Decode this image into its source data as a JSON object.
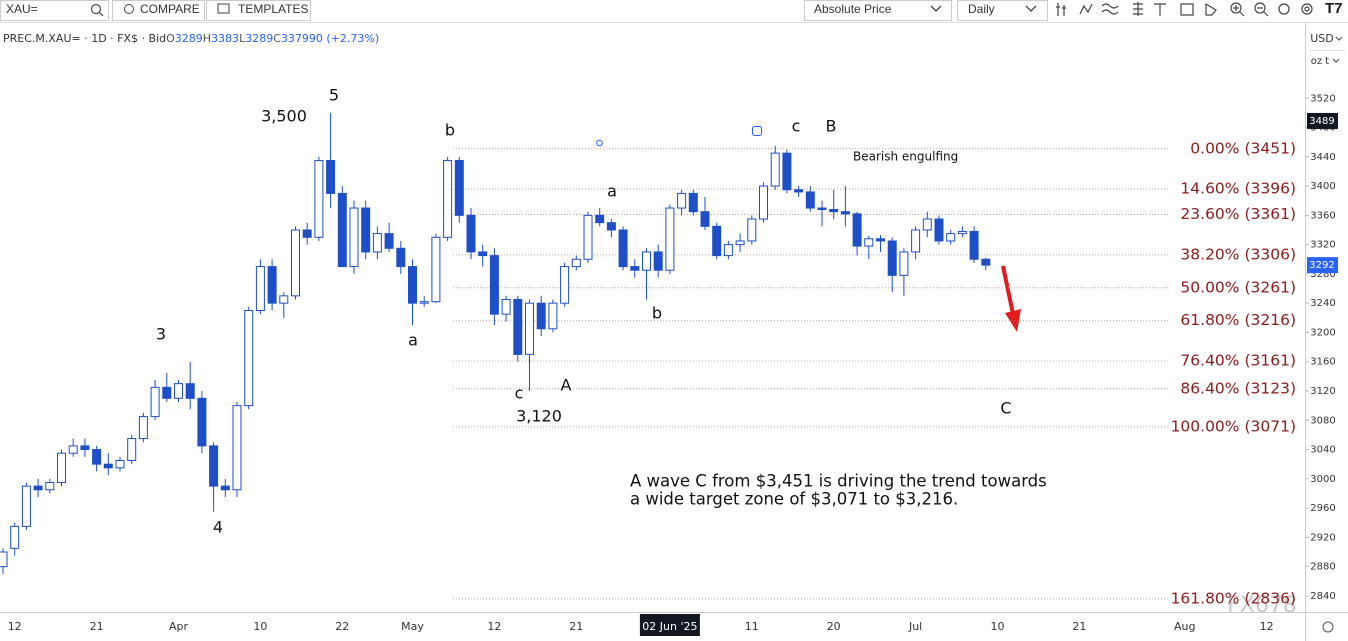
{
  "toolbar": {
    "search": "XAU=",
    "compare": "COMPARE",
    "templates": "TEMPLATES",
    "price_mode": "Absolute Price",
    "interval": "Daily"
  },
  "header": {
    "symbol": "PREC.M.XAU= · 1D · FX$ · Bid",
    "ohlc_labels": [
      "O",
      "H",
      "L",
      "C"
    ],
    "ohlc_values": [
      3289,
      3383,
      3289,
      3379
    ],
    "change": "90 (+2.73%)"
  },
  "chart_data": {
    "type": "candlestick",
    "currency": "USD",
    "unit": "oz t",
    "up_color": "#ffffff",
    "down_color": "#1f4fc8",
    "line_color": "#1f4fc8",
    "ylim": [
      2818,
      3616
    ],
    "yticks": [
      2840,
      2880,
      2920,
      2960,
      3000,
      3040,
      3080,
      3120,
      3160,
      3200,
      3240,
      3280,
      3320,
      3360,
      3400,
      3440,
      3480,
      3520
    ],
    "cursor_price": 3489,
    "last_price": 3292,
    "crosshair_category": 57,
    "categories": [
      null,
      "12",
      null,
      null,
      null,
      null,
      null,
      null,
      "21",
      null,
      null,
      null,
      null,
      null,
      null,
      "Apr",
      null,
      null,
      null,
      null,
      null,
      null,
      "10",
      null,
      null,
      null,
      null,
      null,
      null,
      "22",
      null,
      null,
      null,
      null,
      null,
      "May",
      null,
      null,
      null,
      null,
      null,
      null,
      "12",
      null,
      null,
      null,
      null,
      null,
      null,
      "21",
      null,
      null,
      null,
      null,
      null,
      null,
      null,
      "02 Jun '25",
      null,
      null,
      null,
      null,
      null,
      null,
      "11",
      null,
      null,
      null,
      null,
      null,
      null,
      "20",
      null,
      null,
      null,
      null,
      null,
      null,
      "Jul",
      null,
      null,
      null,
      null,
      null,
      null,
      "10",
      null,
      null,
      null,
      null,
      null,
      null,
      "21",
      null,
      null,
      null,
      null,
      null,
      null,
      null,
      null,
      "Aug",
      null,
      null,
      null,
      null,
      null,
      null,
      "12"
    ],
    "candles": [
      [
        2880,
        2905,
        2870,
        2900
      ],
      [
        2905,
        2940,
        2895,
        2935
      ],
      [
        2935,
        2995,
        2930,
        2990
      ],
      [
        2990,
        3000,
        2975,
        2985
      ],
      [
        2985,
        3000,
        2980,
        2995
      ],
      [
        2995,
        3040,
        2990,
        3035
      ],
      [
        3035,
        3055,
        3030,
        3045
      ],
      [
        3045,
        3055,
        3030,
        3040
      ],
      [
        3040,
        3045,
        3010,
        3020
      ],
      [
        3020,
        3035,
        3005,
        3015
      ],
      [
        3015,
        3030,
        3010,
        3025
      ],
      [
        3025,
        3060,
        3020,
        3055
      ],
      [
        3055,
        3090,
        3050,
        3085
      ],
      [
        3085,
        3135,
        3080,
        3125
      ],
      [
        3125,
        3145,
        3105,
        3110
      ],
      [
        3110,
        3135,
        3105,
        3130
      ],
      [
        3130,
        3160,
        3095,
        3110
      ],
      [
        3110,
        3120,
        3035,
        3045
      ],
      [
        3045,
        3050,
        2955,
        2990
      ],
      [
        2990,
        3000,
        2975,
        2985
      ],
      [
        2985,
        3105,
        2975,
        3100
      ],
      [
        3100,
        3235,
        3095,
        3230
      ],
      [
        3230,
        3300,
        3225,
        3290
      ],
      [
        3290,
        3300,
        3230,
        3240
      ],
      [
        3240,
        3255,
        3220,
        3250
      ],
      [
        3250,
        3345,
        3245,
        3340
      ],
      [
        3340,
        3350,
        3320,
        3330
      ],
      [
        3330,
        3440,
        3325,
        3435
      ],
      [
        3435,
        3500,
        3370,
        3390
      ],
      [
        3390,
        3400,
        3290,
        3290
      ],
      [
        3290,
        3380,
        3280,
        3370
      ],
      [
        3370,
        3380,
        3300,
        3310
      ],
      [
        3310,
        3345,
        3300,
        3335
      ],
      [
        3335,
        3350,
        3310,
        3315
      ],
      [
        3315,
        3325,
        3280,
        3290
      ],
      [
        3290,
        3300,
        3210,
        3240
      ],
      [
        3240,
        3250,
        3235,
        3242
      ],
      [
        3242,
        3335,
        3240,
        3330
      ],
      [
        3330,
        3440,
        3325,
        3435
      ],
      [
        3435,
        3440,
        3350,
        3360
      ],
      [
        3360,
        3370,
        3300,
        3310
      ],
      [
        3310,
        3320,
        3290,
        3305
      ],
      [
        3305,
        3315,
        3210,
        3225
      ],
      [
        3225,
        3250,
        3215,
        3245
      ],
      [
        3245,
        3250,
        3160,
        3170
      ],
      [
        3170,
        3245,
        3120,
        3240
      ],
      [
        3240,
        3250,
        3195,
        3205
      ],
      [
        3205,
        3245,
        3200,
        3240
      ],
      [
        3240,
        3295,
        3235,
        3290
      ],
      [
        3290,
        3305,
        3285,
        3300
      ],
      [
        3300,
        3365,
        3295,
        3360
      ],
      [
        3360,
        3370,
        3345,
        3350
      ],
      [
        3350,
        3355,
        3330,
        3340
      ],
      [
        3340,
        3345,
        3285,
        3290
      ],
      [
        3290,
        3300,
        3275,
        3285
      ],
      [
        3285,
        3315,
        3245,
        3310
      ],
      [
        3310,
        3320,
        3275,
        3285
      ],
      [
        3285,
        3375,
        3280,
        3370
      ],
      [
        3370,
        3395,
        3360,
        3390
      ],
      [
        3390,
        3395,
        3360,
        3365
      ],
      [
        3365,
        3385,
        3340,
        3345
      ],
      [
        3345,
        3350,
        3300,
        3305
      ],
      [
        3305,
        3325,
        3300,
        3320
      ],
      [
        3320,
        3335,
        3310,
        3325
      ],
      [
        3325,
        3360,
        3320,
        3355
      ],
      [
        3355,
        3405,
        3350,
        3400
      ],
      [
        3400,
        3455,
        3395,
        3445
      ],
      [
        3445,
        3450,
        3390,
        3395
      ],
      [
        3395,
        3400,
        3385,
        3392
      ],
      [
        3392,
        3400,
        3365,
        3370
      ],
      [
        3370,
        3380,
        3345,
        3368
      ],
      [
        3368,
        3395,
        3355,
        3365
      ],
      [
        3365,
        3400,
        3345,
        3362
      ],
      [
        3362,
        3365,
        3305,
        3318
      ],
      [
        3318,
        3332,
        3300,
        3328
      ],
      [
        3328,
        3333,
        3310,
        3325
      ],
      [
        3325,
        3330,
        3255,
        3278
      ],
      [
        3278,
        3315,
        3250,
        3310
      ],
      [
        3310,
        3345,
        3300,
        3340
      ],
      [
        3340,
        3365,
        3330,
        3355
      ],
      [
        3355,
        3360,
        3320,
        3325
      ],
      [
        3325,
        3340,
        3320,
        3335
      ],
      [
        3335,
        3345,
        3330,
        3338
      ],
      [
        3338,
        3345,
        3295,
        3300
      ],
      [
        3300,
        3302,
        3285,
        3292
      ],
      null,
      null,
      null,
      null,
      null,
      null,
      null,
      null,
      null,
      null,
      null,
      null,
      null,
      null,
      null,
      null,
      null,
      null,
      null,
      null,
      null,
      null,
      null,
      null
    ],
    "fib_color": "#8b1c1c",
    "fib_levels": [
      {
        "value": 3451,
        "label": "0.00% (3451)"
      },
      {
        "value": 3396,
        "label": "14.60% (3396)"
      },
      {
        "value": 3361,
        "label": "23.60% (3361)"
      },
      {
        "value": 3306,
        "label": "38.20% (3306)"
      },
      {
        "value": 3261,
        "label": "50.00% (3261)"
      },
      {
        "value": 3216,
        "label": "61.80% (3216)"
      },
      {
        "value": 3161,
        "label": "76.40% (3161)"
      },
      {
        "value": 3123,
        "label": "86.40% (3123)"
      },
      {
        "value": 3071,
        "label": "100.00% (3071)"
      },
      {
        "value": 2836,
        "label": "161.80% (2836)"
      }
    ],
    "annotations": [
      "5",
      "3,500",
      "b",
      "c",
      "B",
      "Bearish engulfing",
      "a",
      "3",
      "a",
      "b",
      "c",
      "A",
      "3,120",
      "4",
      "C"
    ],
    "note": [
      "A wave C from $3,451 is driving the trend towards",
      "a wide target zone of $3,071 to $3,216."
    ],
    "watermark": "FX678"
  }
}
